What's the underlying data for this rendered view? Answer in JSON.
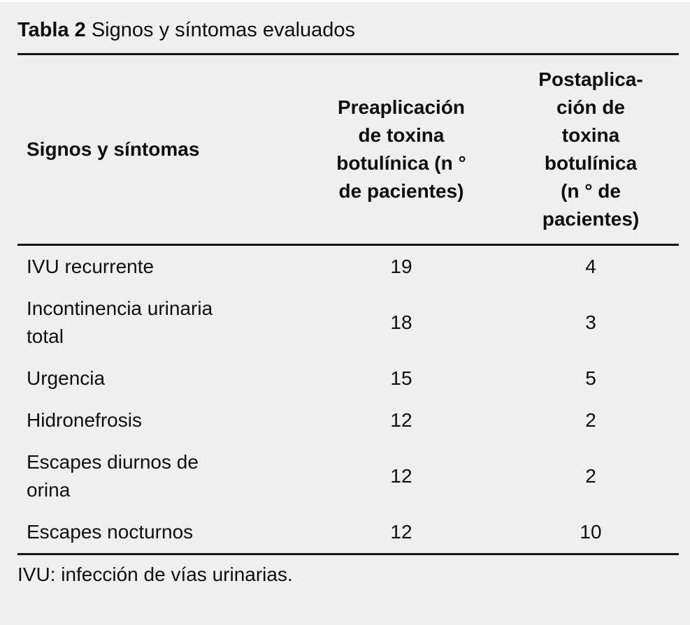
{
  "title": {
    "prefix": "Tabla 2",
    "text": "Signos y síntomas evaluados"
  },
  "table": {
    "columns": [
      {
        "label": "Signos y síntomas"
      },
      {
        "label": "Preaplicación\nde toxina\nbotulínica (n °\nde pacientes)"
      },
      {
        "label": "Postaplica-\nción de\ntoxina\nbotulínica\n(n ° de\npacientes)"
      }
    ],
    "rows": [
      {
        "label": "IVU recurrente",
        "pre": "19",
        "post": "4"
      },
      {
        "label": "Incontinencia urinaria\ntotal",
        "pre": "18",
        "post": "3"
      },
      {
        "label": "Urgencia",
        "pre": "15",
        "post": "5"
      },
      {
        "label": "Hidronefrosis",
        "pre": "12",
        "post": "2"
      },
      {
        "label": "Escapes diurnos de\norina",
        "pre": "12",
        "post": "2"
      },
      {
        "label": "Escapes nocturnos",
        "pre": "12",
        "post": "10"
      }
    ]
  },
  "footnote": "IVU: infección de vías urinarias.",
  "colors": {
    "card_background": "#efefef",
    "text": "#0e0e0e",
    "rule": "#141414"
  }
}
